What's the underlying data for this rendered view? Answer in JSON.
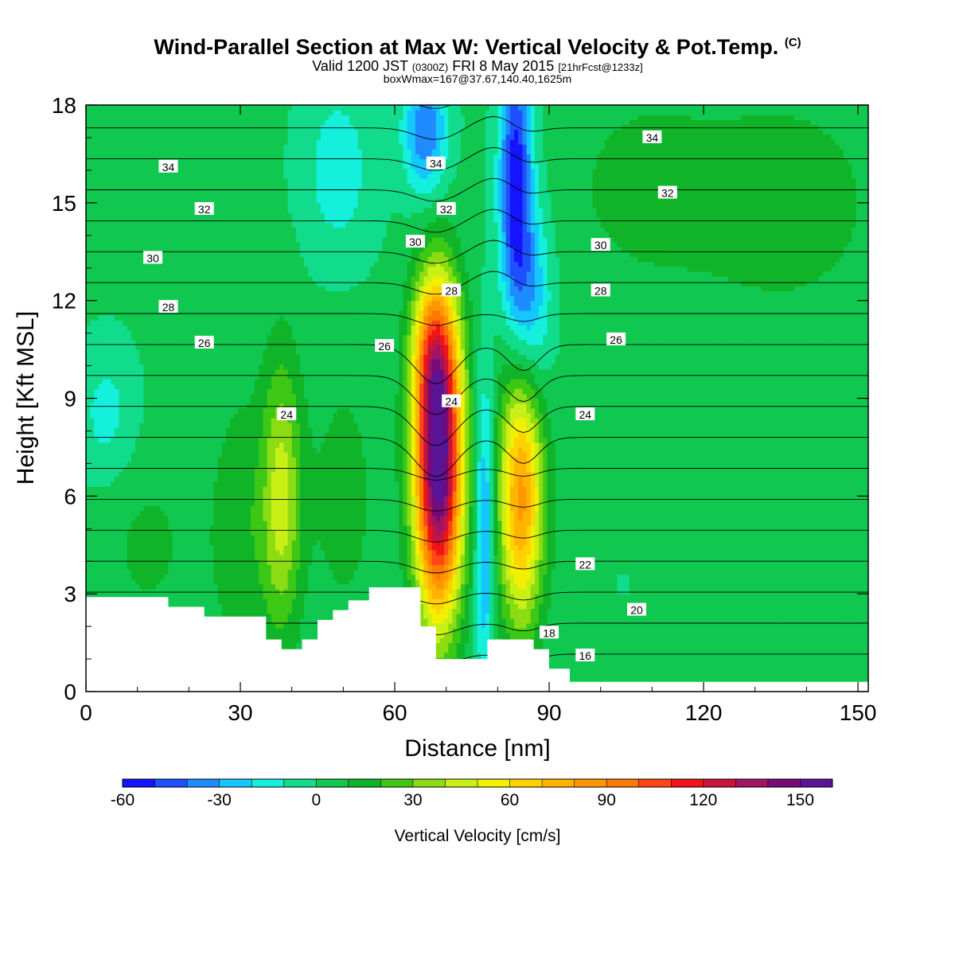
{
  "header": {
    "title": "Wind-Parallel Section at Max W: Vertical Velocity & Pot.Temp.",
    "copyright": "(C)",
    "valid_prefix": "Valid 1200 JST",
    "valid_utc": "(0300Z)",
    "valid_date": "FRI 8 May 2015",
    "forecast": "[21hrFcst@1233z]",
    "box_info": "boxWmax=167@37.67,140.40,1625m"
  },
  "chart_data": {
    "type": "heatmap",
    "xlabel": "Distance [nm]",
    "ylabel": "Height [Kft MSL]",
    "xlim": [
      0,
      152
    ],
    "ylim": [
      0,
      18
    ],
    "xticks": [
      "0",
      "30",
      "60",
      "90",
      "120",
      "150"
    ],
    "yticks": [
      "0",
      "3",
      "6",
      "9",
      "12",
      "15",
      "18"
    ],
    "colorbar": {
      "label": "Vertical Velocity [cm/s]",
      "range": [
        -60,
        160
      ],
      "step": 10,
      "tick_labels": [
        "-60",
        "-30",
        "0",
        "30",
        "60",
        "90",
        "120",
        "150"
      ],
      "colors": [
        "#1414ff",
        "#1e50ff",
        "#1e8cff",
        "#14c8ff",
        "#14f0dc",
        "#10dc8c",
        "#10c850",
        "#10b428",
        "#3cc814",
        "#8cdc14",
        "#c8f014",
        "#f0f000",
        "#ffd200",
        "#ffb400",
        "#ff9600",
        "#ff7800",
        "#ff4614",
        "#f01414",
        "#c8143c",
        "#a01464",
        "#780a78",
        "#5a1496"
      ]
    },
    "theta_contours": [
      {
        "label": "16",
        "x": 97,
        "y": 1.1
      },
      {
        "label": "18",
        "x": 90,
        "y": 1.8
      },
      {
        "label": "20",
        "x": 107,
        "y": 2.5
      },
      {
        "label": "22",
        "x": 97,
        "y": 3.9
      },
      {
        "label": "24",
        "x": 39,
        "y": 8.5
      },
      {
        "label": "24",
        "x": 71,
        "y": 8.9
      },
      {
        "label": "24",
        "x": 97,
        "y": 8.5
      },
      {
        "label": "26",
        "x": 23,
        "y": 10.7
      },
      {
        "label": "26",
        "x": 58,
        "y": 10.6
      },
      {
        "label": "26",
        "x": 103,
        "y": 10.8
      },
      {
        "label": "28",
        "x": 16,
        "y": 11.8
      },
      {
        "label": "28",
        "x": 71,
        "y": 12.3
      },
      {
        "label": "28",
        "x": 100,
        "y": 12.3
      },
      {
        "label": "30",
        "x": 13,
        "y": 13.3
      },
      {
        "label": "30",
        "x": 64,
        "y": 13.8
      },
      {
        "label": "30",
        "x": 100,
        "y": 13.7
      },
      {
        "label": "32",
        "x": 23,
        "y": 14.8
      },
      {
        "label": "32",
        "x": 70,
        "y": 14.8
      },
      {
        "label": "32",
        "x": 113,
        "y": 15.3
      },
      {
        "label": "34",
        "x": 16,
        "y": 16.1
      },
      {
        "label": "34",
        "x": 68,
        "y": 16.2
      },
      {
        "label": "34",
        "x": 110,
        "y": 17.0
      }
    ],
    "velocity_features": [
      {
        "kind": "updraft",
        "x": 68.5,
        "y": 7.0,
        "peak": 160
      },
      {
        "kind": "updraft",
        "x": 84.5,
        "y": 6.0,
        "peak": 80
      },
      {
        "kind": "updraft",
        "x": 38,
        "y": 6.0,
        "peak": 40
      },
      {
        "kind": "downdraft",
        "x": 77.5,
        "y": 5.0,
        "peak": -40
      },
      {
        "kind": "downdraft",
        "x": 84,
        "y": 15.5,
        "peak": -60
      },
      {
        "kind": "downdraft",
        "x": 66,
        "y": 17.0,
        "peak": -40
      }
    ],
    "terrain": [
      [
        0,
        2.9
      ],
      [
        16,
        2.9
      ],
      [
        16,
        2.6
      ],
      [
        23,
        2.6
      ],
      [
        23,
        2.3
      ],
      [
        35,
        2.3
      ],
      [
        35,
        1.6
      ],
      [
        38,
        1.6
      ],
      [
        38,
        1.3
      ],
      [
        42,
        1.3
      ],
      [
        42,
        1.6
      ],
      [
        45,
        1.6
      ],
      [
        45,
        2.2
      ],
      [
        48,
        2.2
      ],
      [
        48,
        2.5
      ],
      [
        51,
        2.5
      ],
      [
        51,
        2.8
      ],
      [
        55,
        2.8
      ],
      [
        55,
        3.2
      ],
      [
        65,
        3.2
      ],
      [
        65,
        2.0
      ],
      [
        68,
        2.0
      ],
      [
        68,
        1.0
      ],
      [
        78,
        1.0
      ],
      [
        78,
        1.6
      ],
      [
        87,
        1.6
      ],
      [
        87,
        1.3
      ],
      [
        90,
        1.3
      ],
      [
        90,
        0.7
      ],
      [
        94,
        0.7
      ],
      [
        94,
        0.3
      ],
      [
        152,
        0.3
      ]
    ]
  }
}
